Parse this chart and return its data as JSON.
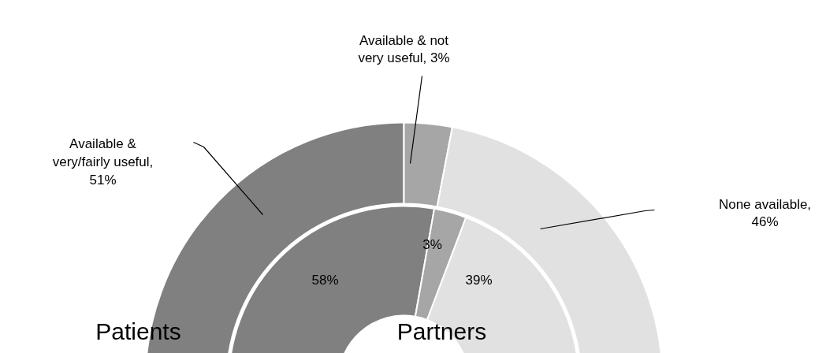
{
  "chart_data": {
    "type": "donut",
    "categories": [
      "Available & very/fairly useful",
      "Available & not very useful",
      "None available"
    ],
    "colors": [
      "#808080",
      "#a6a6a6",
      "#e1e1e1"
    ],
    "series": [
      {
        "name": "Patients",
        "values": [
          51,
          3,
          46
        ],
        "value_labels": [
          ", 51%",
          ", 3%",
          ", 46%"
        ]
      },
      {
        "name": "Partners",
        "values": [
          58,
          3,
          39
        ],
        "value_labels": [
          "58%",
          "3%",
          "39%"
        ]
      }
    ]
  }
}
